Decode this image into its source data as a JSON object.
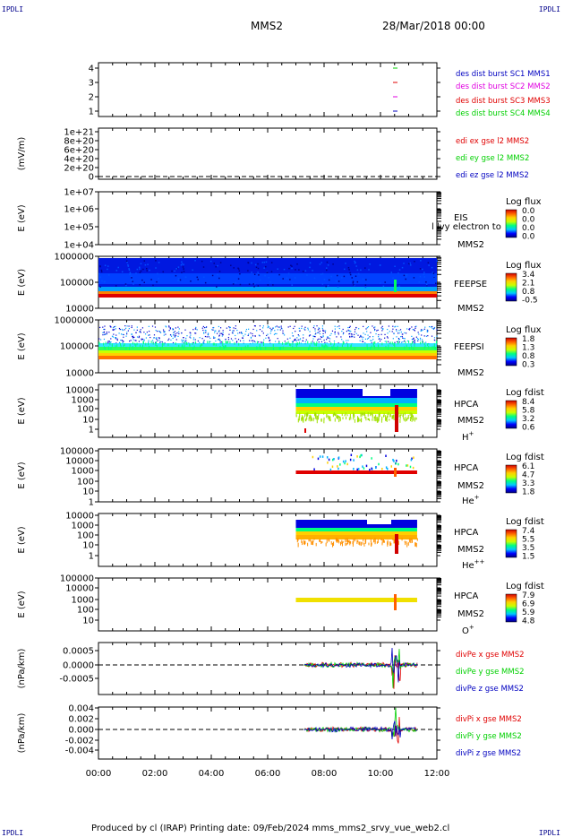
{
  "corners": {
    "tl": "IPDLI",
    "tr": "IPDLI",
    "bl": "IPDLI",
    "br": "IPDLI"
  },
  "header": {
    "mission": "MMS2",
    "datetime": "28/Mar/2018 00:00"
  },
  "footer": {
    "text": "Produced by cl (IRAP)   Printing date: 09/Feb/2024   mms_mms2_srvy_vue_web2.cl"
  },
  "colors": {
    "red": "#e00000",
    "green": "#00d000",
    "blue": "#0000c0",
    "magenta": "#e000e0"
  },
  "chart_data": [
    {
      "type": "line",
      "name": "burst-flags",
      "ylabels": [
        "4",
        "3",
        "2",
        "1"
      ],
      "xrange": [
        "00:00",
        "12:00"
      ],
      "legend": [
        {
          "text": "des dist burst SC1 MMS1",
          "color": "#0000c0"
        },
        {
          "text": "des dist burst SC2 MMS2",
          "color": "#e000e0"
        },
        {
          "text": "des dist burst SC3 MMS3",
          "color": "#e00000"
        },
        {
          "text": "des dist burst SC4 MMS4",
          "color": "#00d000"
        }
      ]
    },
    {
      "type": "line",
      "name": "edi-e",
      "ylabel": "(mV/m)",
      "ylabels": [
        "1e+21",
        "8e+20",
        "6e+20",
        "4e+20",
        "2e+20",
        "0"
      ],
      "legend": [
        {
          "text": "edi ex gse l2 MMS2",
          "color": "#e00000"
        },
        {
          "text": "edi ey gse l2 MMS2",
          "color": "#00d000"
        },
        {
          "text": "edi ez gse l2 MMS2",
          "color": "#0000c0"
        }
      ]
    },
    {
      "type": "heatmap",
      "name": "eis",
      "ylabel": "E (eV)",
      "ylabels": [
        "1e+07",
        "1e+06",
        "1e+05",
        "1e+04"
      ],
      "labels": [
        "EIS",
        "MMS2"
      ],
      "overlay": "l lvy electron to",
      "cbar_title": "Log flux",
      "cbar_ticks": [
        "0.0",
        "0.0",
        "0.0",
        "0.0"
      ]
    },
    {
      "type": "heatmap",
      "name": "feepse",
      "ylabel": "E (eV)",
      "ylabels": [
        "1000000",
        "100000",
        "10000"
      ],
      "labels": [
        "FEEPSE",
        "MMS2"
      ],
      "cbar_title": "Log flux",
      "cbar_ticks": [
        "3.4",
        "2.1",
        "0.8",
        "-0.5"
      ]
    },
    {
      "type": "heatmap",
      "name": "feepsi",
      "ylabel": "E (eV)",
      "ylabels": [
        "1000000",
        "100000",
        "10000"
      ],
      "labels": [
        "FEEPSI",
        "MMS2"
      ],
      "cbar_title": "Log flux",
      "cbar_ticks": [
        "1.8",
        "1.3",
        "0.8",
        "0.3"
      ]
    },
    {
      "type": "heatmap",
      "name": "hpca-h",
      "ylabel": "E (eV)",
      "ylabels": [
        "10000",
        "1000",
        "100",
        "10",
        "1"
      ],
      "labels": [
        "HPCA",
        "MMS2",
        "H+"
      ],
      "cbar_title": "Log fdist",
      "cbar_ticks": [
        "8.4",
        "5.8",
        "3.2",
        "0.6"
      ]
    },
    {
      "type": "heatmap",
      "name": "hpca-he",
      "ylabel": "E (eV)",
      "ylabels": [
        "100000",
        "10000",
        "1000",
        "100",
        "10",
        "1"
      ],
      "labels": [
        "HPCA",
        "MMS2",
        "He+"
      ],
      "cbar_title": "Log fdist",
      "cbar_ticks": [
        "6.1",
        "4.7",
        "3.3",
        "1.8"
      ]
    },
    {
      "type": "heatmap",
      "name": "hpca-hepp",
      "ylabel": "E (eV)",
      "ylabels": [
        "10000",
        "1000",
        "100",
        "10",
        "1"
      ],
      "labels": [
        "HPCA",
        "MMS2",
        "He++"
      ],
      "cbar_title": "Log fdist",
      "cbar_ticks": [
        "7.4",
        "5.5",
        "3.5",
        "1.5"
      ]
    },
    {
      "type": "heatmap",
      "name": "hpca-o",
      "ylabel": "E (eV)",
      "ylabels": [
        "100000",
        "10000",
        "1000",
        "100",
        "10"
      ],
      "labels": [
        "HPCA",
        "MMS2",
        "O+"
      ],
      "cbar_title": "Log fdist",
      "cbar_ticks": [
        "7.9",
        "6.9",
        "5.9",
        "4.8"
      ]
    },
    {
      "type": "line",
      "name": "divpe",
      "ylabel": "(nPa/km)",
      "ylabels": [
        "0.0005",
        "0.0000",
        "-0.0005"
      ],
      "legend": [
        {
          "text": "divPe x gse MMS2",
          "color": "#e00000"
        },
        {
          "text": "divPe y gse MMS2",
          "color": "#00d000"
        },
        {
          "text": "divPe z gse MMS2",
          "color": "#0000c0"
        }
      ]
    },
    {
      "type": "line",
      "name": "divpi",
      "ylabel": "(nPa/km)",
      "ylabels": [
        "0.004",
        "0.002",
        "0.000",
        "-0.002",
        "-0.004"
      ],
      "legend": [
        {
          "text": "divPi x gse MMS2",
          "color": "#e00000"
        },
        {
          "text": "divPi y gse MMS2",
          "color": "#00d000"
        },
        {
          "text": "divPi z gse MMS2",
          "color": "#0000c0"
        }
      ]
    }
  ],
  "xaxis": {
    "ticks": [
      "00:00",
      "02:00",
      "04:00",
      "06:00",
      "08:00",
      "10:00",
      "12:00"
    ]
  }
}
